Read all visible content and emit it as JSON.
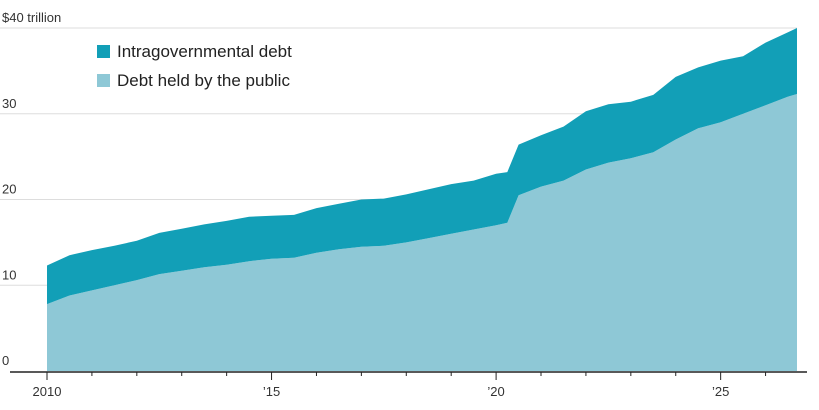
{
  "chart_data": {
    "type": "area",
    "stacked": true,
    "title": "",
    "xlabel": "",
    "ylabel": "",
    "y_unit_label": "$40 trillion",
    "ylim": [
      0,
      40
    ],
    "xlim": [
      2010.0,
      2026.7
    ],
    "grid": "horizontal",
    "legend_position": "top-left",
    "yticks": [
      {
        "value": 0,
        "label": "0"
      },
      {
        "value": 10,
        "label": "10"
      },
      {
        "value": 20,
        "label": "20"
      },
      {
        "value": 30,
        "label": "30"
      },
      {
        "value": 40,
        "label": "$40 trillion"
      }
    ],
    "xticks": [
      {
        "value": 2010,
        "label": "2010"
      },
      {
        "value": 2015,
        "label": "’15"
      },
      {
        "value": 2020,
        "label": "’20"
      },
      {
        "value": 2025,
        "label": "’25"
      }
    ],
    "colors": {
      "Intragovernmental debt": "#129fb7",
      "Debt held by the public": "#8ec8d6",
      "grid": "#dddddd",
      "axis": "#222222"
    },
    "x": [
      2010.0,
      2010.5,
      2011.0,
      2011.5,
      2012.0,
      2012.5,
      2013.0,
      2013.5,
      2014.0,
      2014.5,
      2015.0,
      2015.5,
      2016.0,
      2016.5,
      2017.0,
      2017.5,
      2018.0,
      2018.5,
      2019.0,
      2019.5,
      2020.0,
      2020.25,
      2020.5,
      2021.0,
      2021.5,
      2022.0,
      2022.5,
      2023.0,
      2023.5,
      2024.0,
      2024.5,
      2025.0,
      2025.5,
      2026.0,
      2026.5,
      2026.7
    ],
    "series": [
      {
        "name": "Debt held by the public",
        "values": [
          7.8,
          8.8,
          9.4,
          10.0,
          10.6,
          11.3,
          11.7,
          12.1,
          12.4,
          12.8,
          13.1,
          13.2,
          13.8,
          14.2,
          14.5,
          14.6,
          15.0,
          15.5,
          16.0,
          16.5,
          17.0,
          17.3,
          20.5,
          21.5,
          22.2,
          23.5,
          24.3,
          24.8,
          25.5,
          27.0,
          28.3,
          29.0,
          30.0,
          31.0,
          32.0,
          32.3
        ]
      },
      {
        "name": "Intragovernmental debt",
        "values": [
          4.5,
          4.7,
          4.7,
          4.6,
          4.6,
          4.8,
          4.9,
          5.0,
          5.1,
          5.2,
          5.0,
          5.0,
          5.2,
          5.3,
          5.5,
          5.5,
          5.6,
          5.7,
          5.8,
          5.7,
          6.0,
          5.9,
          5.9,
          6.0,
          6.3,
          6.8,
          6.8,
          6.6,
          6.7,
          7.3,
          7.1,
          7.2,
          6.7,
          7.3,
          7.5,
          7.7
        ]
      }
    ]
  }
}
